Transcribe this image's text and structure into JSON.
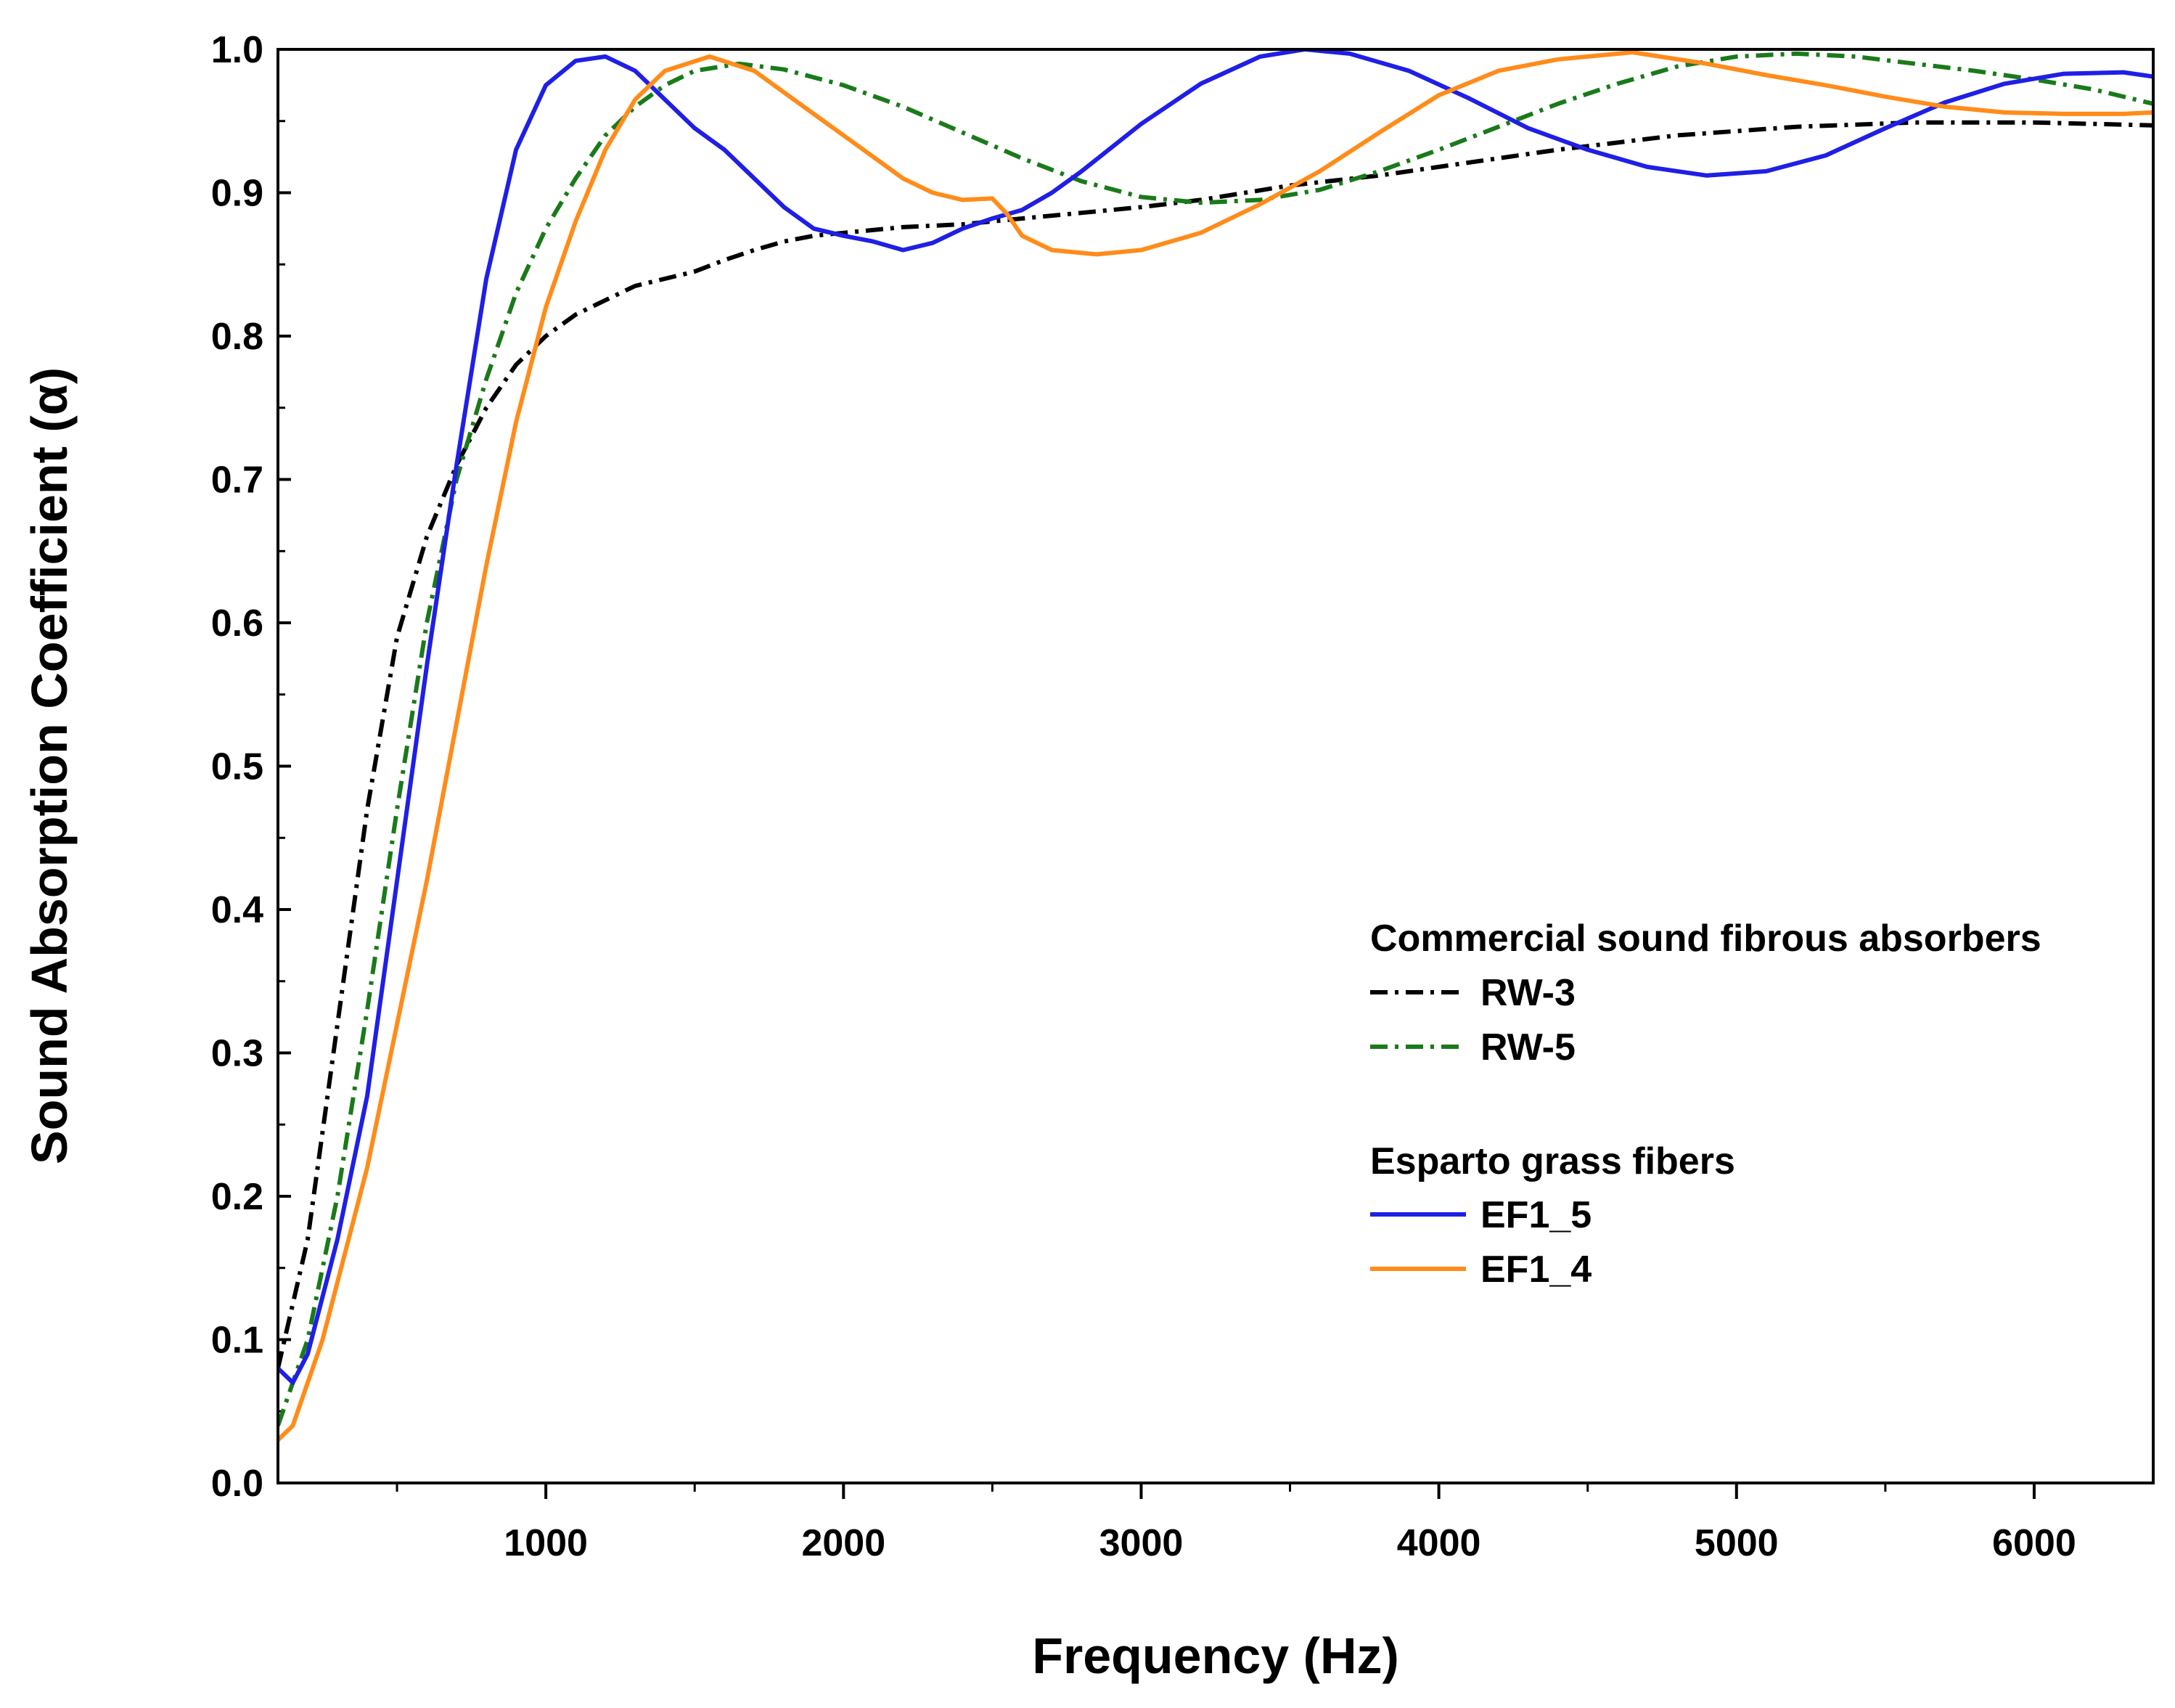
{
  "chart_data": {
    "type": "line",
    "xlabel": "Frequency (Hz)",
    "ylabel": "Sound Absorption Coefficient (α)",
    "xlim": [
      100,
      6400
    ],
    "ylim": [
      0.0,
      1.0
    ],
    "xticks": [
      1000,
      2000,
      3000,
      4000,
      5000,
      6000
    ],
    "xtick_labels": [
      "1000",
      "2000",
      "3000",
      "4000",
      "5000",
      "6000"
    ],
    "yticks": [
      0.0,
      0.1,
      0.2,
      0.3,
      0.4,
      0.5,
      0.6,
      0.7,
      0.8,
      0.9,
      1.0
    ],
    "ytick_labels": [
      "0.0",
      "0.1",
      "0.2",
      "0.3",
      "0.4",
      "0.5",
      "0.6",
      "0.7",
      "0.8",
      "0.9",
      "1.0"
    ],
    "legend": {
      "placement": "middle-right",
      "group1_title": "Commercial sound fibrous absorbers",
      "group2_title": "Esparto grass fibers"
    },
    "series": [
      {
        "name": "RW-3",
        "color": "#000000",
        "dash": "dashdot",
        "x": [
          100,
          200,
          300,
          400,
          500,
          600,
          700,
          800,
          900,
          1000,
          1100,
          1200,
          1300,
          1400,
          1500,
          1600,
          1700,
          1800,
          1900,
          2000,
          2200,
          2400,
          2600,
          2800,
          3000,
          3200,
          3500,
          3800,
          4000,
          4400,
          4800,
          5200,
          5600,
          6000,
          6400
        ],
        "y": [
          0.08,
          0.17,
          0.32,
          0.47,
          0.59,
          0.66,
          0.71,
          0.75,
          0.78,
          0.8,
          0.815,
          0.825,
          0.835,
          0.84,
          0.845,
          0.853,
          0.86,
          0.866,
          0.87,
          0.872,
          0.876,
          0.878,
          0.882,
          0.886,
          0.89,
          0.895,
          0.905,
          0.912,
          0.918,
          0.93,
          0.94,
          0.946,
          0.949,
          0.949,
          0.947
        ]
      },
      {
        "name": "RW-5",
        "color": "#1a7a1a",
        "dash": "dashdot",
        "x": [
          100,
          200,
          300,
          400,
          500,
          600,
          700,
          800,
          900,
          1000,
          1100,
          1200,
          1300,
          1400,
          1500,
          1650,
          1800,
          2000,
          2200,
          2400,
          2600,
          2800,
          3000,
          3200,
          3400,
          3600,
          3800,
          4000,
          4200,
          4400,
          4600,
          4800,
          5000,
          5200,
          5400,
          5600,
          5800,
          6000,
          6200,
          6400
        ],
        "y": [
          0.04,
          0.1,
          0.2,
          0.33,
          0.47,
          0.6,
          0.7,
          0.77,
          0.83,
          0.875,
          0.91,
          0.94,
          0.96,
          0.975,
          0.985,
          0.99,
          0.986,
          0.975,
          0.96,
          0.942,
          0.924,
          0.908,
          0.897,
          0.893,
          0.895,
          0.902,
          0.915,
          0.93,
          0.946,
          0.962,
          0.976,
          0.988,
          0.995,
          0.997,
          0.995,
          0.99,
          0.985,
          0.979,
          0.972,
          0.962
        ]
      },
      {
        "name": "EF1_5",
        "color": "#1f1fe6",
        "dash": "solid",
        "x": [
          100,
          150,
          200,
          250,
          300,
          400,
          500,
          600,
          700,
          800,
          900,
          1000,
          1100,
          1200,
          1300,
          1400,
          1500,
          1600,
          1700,
          1800,
          1900,
          2000,
          2100,
          2200,
          2300,
          2400,
          2500,
          2600,
          2700,
          2800,
          3000,
          3200,
          3400,
          3550,
          3700,
          3900,
          4100,
          4300,
          4500,
          4700,
          4900,
          5100,
          5300,
          5500,
          5700,
          5900,
          6100,
          6300,
          6400
        ],
        "y": [
          0.08,
          0.07,
          0.09,
          0.13,
          0.17,
          0.27,
          0.42,
          0.57,
          0.71,
          0.84,
          0.93,
          0.975,
          0.992,
          0.995,
          0.985,
          0.965,
          0.945,
          0.93,
          0.91,
          0.89,
          0.875,
          0.87,
          0.866,
          0.86,
          0.865,
          0.875,
          0.882,
          0.888,
          0.9,
          0.915,
          0.948,
          0.976,
          0.995,
          1.0,
          0.997,
          0.985,
          0.966,
          0.945,
          0.93,
          0.918,
          0.912,
          0.915,
          0.926,
          0.945,
          0.963,
          0.976,
          0.983,
          0.984,
          0.981
        ]
      },
      {
        "name": "EF1_4",
        "color": "#ff8c1a",
        "dash": "solid",
        "x": [
          100,
          150,
          200,
          250,
          300,
          400,
          500,
          600,
          700,
          800,
          900,
          1000,
          1100,
          1200,
          1300,
          1400,
          1550,
          1700,
          1800,
          1900,
          2000,
          2100,
          2200,
          2300,
          2400,
          2500,
          2550,
          2600,
          2700,
          2850,
          3000,
          3200,
          3400,
          3600,
          3800,
          4000,
          4200,
          4400,
          4650,
          4900,
          5100,
          5300,
          5500,
          5700,
          5900,
          6100,
          6300,
          6400
        ],
        "y": [
          0.03,
          0.04,
          0.07,
          0.1,
          0.14,
          0.22,
          0.32,
          0.42,
          0.53,
          0.64,
          0.74,
          0.82,
          0.88,
          0.93,
          0.965,
          0.985,
          0.995,
          0.985,
          0.97,
          0.955,
          0.94,
          0.925,
          0.91,
          0.9,
          0.895,
          0.896,
          0.885,
          0.87,
          0.86,
          0.857,
          0.86,
          0.872,
          0.892,
          0.915,
          0.942,
          0.968,
          0.985,
          0.993,
          0.998,
          0.99,
          0.982,
          0.975,
          0.967,
          0.96,
          0.956,
          0.955,
          0.955,
          0.956
        ]
      }
    ]
  }
}
